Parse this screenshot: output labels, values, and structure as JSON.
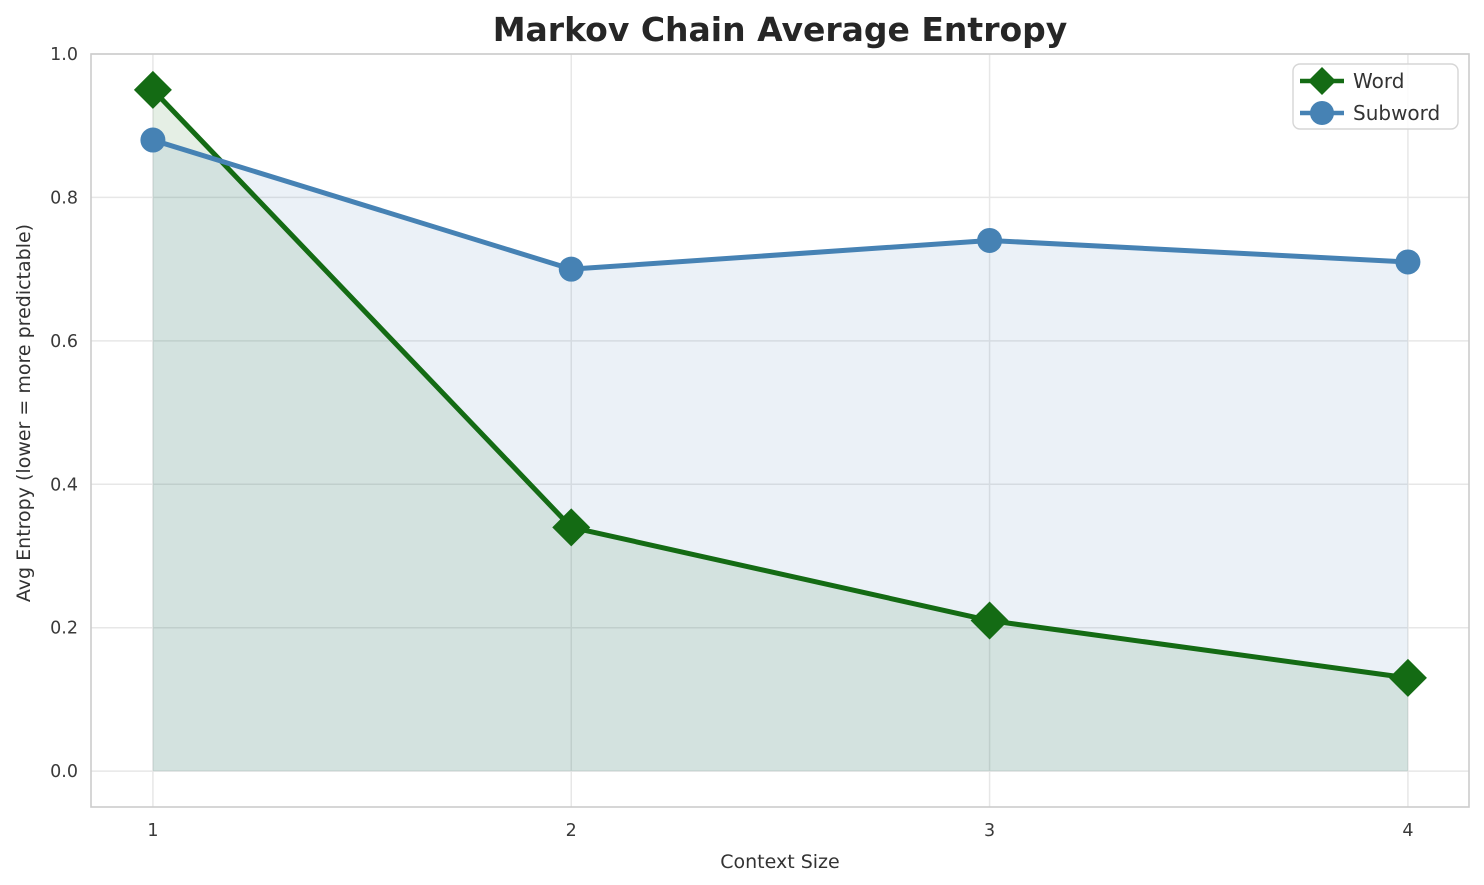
{
  "chart_data": {
    "type": "line",
    "title": "Markov Chain Average Entropy",
    "xlabel": "Context Size",
    "ylabel": "Avg Entropy (lower = more predictable)",
    "x": [
      1,
      2,
      3,
      4
    ],
    "series": [
      {
        "name": "Word",
        "values": [
          0.95,
          0.34,
          0.21,
          0.13
        ],
        "color": "#146b14",
        "marker": "diamond",
        "fill_to_zero": true
      },
      {
        "name": "Subword",
        "values": [
          0.88,
          0.7,
          0.74,
          0.71
        ],
        "color": "#4682b4",
        "marker": "circle",
        "fill_to_zero": true
      }
    ],
    "xticks": [
      1,
      2,
      3,
      4
    ],
    "xtick_labels": [
      "1",
      "2",
      "3",
      "4"
    ],
    "yticks": [
      0.0,
      0.2,
      0.4,
      0.6,
      0.8,
      1.0
    ],
    "ytick_labels": [
      "0.0",
      "0.2",
      "0.4",
      "0.6",
      "0.8",
      "1.0"
    ],
    "xlim": [
      0.852,
      4.146
    ],
    "ylim": [
      -0.05,
      1.0
    ],
    "grid": true,
    "legend_position": "upper right",
    "fill_alpha": 0.11,
    "line_width": 5,
    "colors": {
      "background": "#ffffff",
      "grid": "#e7e7e7",
      "spine": "#cccccc",
      "tick_text": "#3a3a3a",
      "title_text": "#262626"
    }
  }
}
